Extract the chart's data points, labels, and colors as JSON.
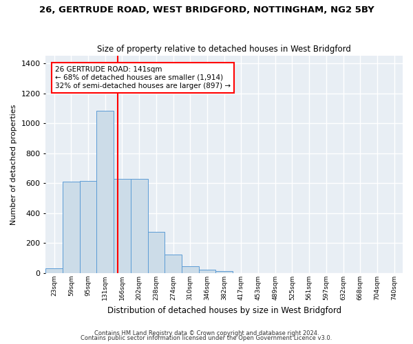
{
  "title": "26, GERTRUDE ROAD, WEST BRIDGFORD, NOTTINGHAM, NG2 5BY",
  "subtitle": "Size of property relative to detached houses in West Bridgford",
  "xlabel": "Distribution of detached houses by size in West Bridgford",
  "ylabel": "Number of detached properties",
  "bar_color": "#ccdce8",
  "bar_edge_color": "#5b9bd5",
  "background_color": "#e8eef4",
  "grid_color": "#ffffff",
  "fig_facecolor": "#ffffff",
  "bin_labels": [
    "23sqm",
    "59sqm",
    "95sqm",
    "131sqm",
    "166sqm",
    "202sqm",
    "238sqm",
    "274sqm",
    "310sqm",
    "346sqm",
    "382sqm",
    "417sqm",
    "453sqm",
    "489sqm",
    "525sqm",
    "561sqm",
    "597sqm",
    "632sqm",
    "668sqm",
    "704sqm",
    "740sqm"
  ],
  "bar_heights": [
    30,
    610,
    615,
    1085,
    630,
    630,
    275,
    125,
    45,
    25,
    15,
    0,
    0,
    0,
    0,
    0,
    0,
    0,
    0,
    0,
    0
  ],
  "ylim": [
    0,
    1450
  ],
  "yticks": [
    0,
    200,
    400,
    600,
    800,
    1000,
    1200,
    1400
  ],
  "vline_x": 3.72,
  "annotation_line1": "26 GERTRUDE ROAD: 141sqm",
  "annotation_line2": "← 68% of detached houses are smaller (1,914)",
  "annotation_line3": "32% of semi-detached houses are larger (897) →",
  "footer_line1": "Contains HM Land Registry data © Crown copyright and database right 2024.",
  "footer_line2": "Contains public sector information licensed under the Open Government Licence v3.0."
}
